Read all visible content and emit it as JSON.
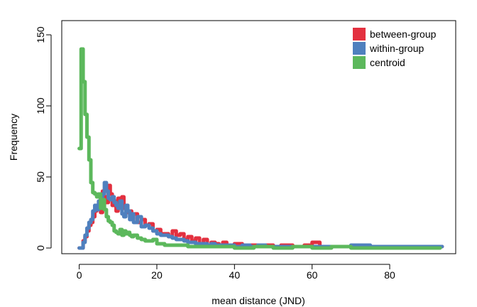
{
  "chart_data": {
    "type": "line",
    "xlabel": "mean distance (JND)",
    "ylabel": "Frequency",
    "xlim": [
      -4.5,
      97
    ],
    "ylim": [
      -4,
      160
    ],
    "xticks": [
      0,
      20,
      40,
      60,
      80
    ],
    "yticks": [
      0,
      50,
      100,
      150
    ],
    "legend_position": "top-right",
    "series": [
      {
        "name": "between-group",
        "color": "#E3303F",
        "x": [
          0,
          1,
          1.5,
          2,
          2.5,
          3,
          3.5,
          4,
          4.5,
          5,
          5.5,
          6,
          6.5,
          7,
          7.5,
          8,
          8.5,
          9,
          9.5,
          10,
          10.5,
          11,
          11.5,
          12,
          12.5,
          13,
          13.5,
          14,
          15,
          16,
          17,
          18,
          19,
          20,
          21,
          22,
          23,
          24,
          25,
          26,
          27,
          28,
          29,
          30,
          31,
          32,
          33,
          34,
          35,
          36,
          37,
          38,
          40,
          42,
          44,
          46,
          48,
          50,
          52,
          55,
          58,
          60,
          62,
          65,
          70,
          75,
          80,
          85,
          90,
          93.5
        ],
        "values": [
          0,
          5,
          8,
          12,
          16,
          18,
          22,
          26,
          30,
          30,
          25,
          40,
          36,
          32,
          44,
          38,
          30,
          33,
          26,
          35,
          32,
          36,
          28,
          30,
          25,
          26,
          20,
          24,
          18,
          20,
          16,
          17,
          12,
          13,
          10,
          10,
          8,
          12,
          9,
          10,
          6,
          8,
          5,
          7,
          3,
          6,
          2,
          4,
          3,
          2,
          4,
          2,
          3,
          2,
          2,
          1,
          2,
          1,
          2,
          1,
          2,
          4,
          1,
          1,
          1,
          1,
          1,
          1,
          1,
          1
        ]
      },
      {
        "name": "within-group",
        "color": "#4F80BE",
        "x": [
          0,
          1,
          1.5,
          2,
          2.5,
          3,
          3.5,
          4,
          4.5,
          5,
          5.5,
          6,
          6.5,
          7,
          7.5,
          8,
          8.5,
          9,
          9.5,
          10,
          10.5,
          11,
          11.5,
          12,
          12.5,
          13,
          13.5,
          14,
          15,
          16,
          17,
          18,
          19,
          20,
          21,
          22,
          23,
          24,
          25,
          26,
          27,
          28,
          29,
          30,
          31,
          32,
          33,
          34,
          35,
          36,
          37,
          38,
          40,
          42,
          44,
          46,
          48,
          50,
          52,
          55,
          58,
          60,
          62,
          65,
          70,
          75,
          80,
          85,
          90,
          93.5
        ],
        "values": [
          0,
          4,
          9,
          14,
          18,
          20,
          26,
          30,
          27,
          33,
          35,
          38,
          46,
          40,
          35,
          34,
          36,
          32,
          30,
          28,
          33,
          24,
          22,
          30,
          26,
          20,
          24,
          18,
          22,
          15,
          16,
          14,
          12,
          10,
          9,
          9,
          8,
          7,
          6,
          6,
          5,
          4,
          4,
          3,
          3,
          3,
          2,
          3,
          2,
          2,
          2,
          2,
          1,
          2,
          1,
          2,
          1,
          1,
          1,
          1,
          1,
          1,
          1,
          1,
          2,
          1,
          1,
          1,
          1,
          1
        ]
      },
      {
        "name": "centroid",
        "color": "#5CB85C",
        "x": [
          0,
          0.5,
          1,
          1.5,
          2,
          2.5,
          3,
          3.5,
          4,
          4.5,
          5,
          5.5,
          6,
          6.5,
          7,
          7.5,
          8,
          8.5,
          9,
          9.5,
          10,
          10.5,
          11,
          11.5,
          12,
          12.5,
          13,
          13.5,
          14,
          15,
          16,
          17,
          18,
          19,
          20,
          21,
          22,
          24,
          26,
          28,
          30,
          32,
          35,
          40,
          45,
          50,
          55,
          60,
          65,
          70,
          80,
          90,
          93
        ],
        "values": [
          70,
          140,
          117,
          94,
          78,
          62,
          46,
          39,
          38,
          36,
          38,
          28,
          34,
          27,
          22,
          19,
          18,
          16,
          12,
          11,
          10,
          13,
          9,
          12,
          10,
          11,
          9,
          8,
          9,
          7,
          6,
          5,
          5,
          6,
          3,
          3,
          2,
          2,
          2,
          1,
          1,
          1,
          1,
          0,
          1,
          0,
          1,
          0,
          1,
          0,
          0,
          0,
          0
        ]
      }
    ]
  }
}
